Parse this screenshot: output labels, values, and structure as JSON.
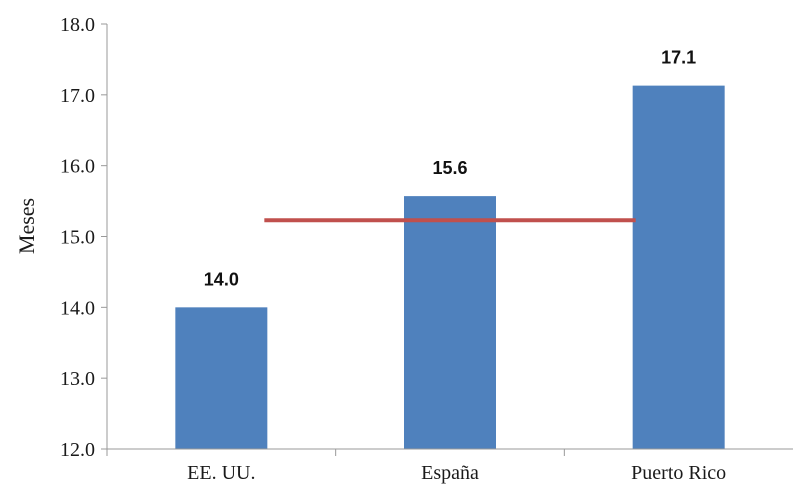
{
  "chart_data": {
    "type": "bar",
    "title": "",
    "xlabel": "",
    "ylabel": "Meses",
    "ylim": [
      12.0,
      18.0
    ],
    "yticks": [
      "12.0",
      "13.0",
      "14.0",
      "15.0",
      "16.0",
      "17.0",
      "18.0"
    ],
    "categories": [
      "EE. UU.",
      "España",
      "Puerto Rico"
    ],
    "values": [
      14.0,
      15.57,
      17.13
    ],
    "data_labels": [
      "14.0",
      "15.6",
      "17.1"
    ],
    "reference_line": {
      "value": 15.23
    },
    "grid": false,
    "legend": "none",
    "colors": {
      "bar": "#4f81bd",
      "reference_line": "#c0504d",
      "axis": "#999999"
    }
  }
}
